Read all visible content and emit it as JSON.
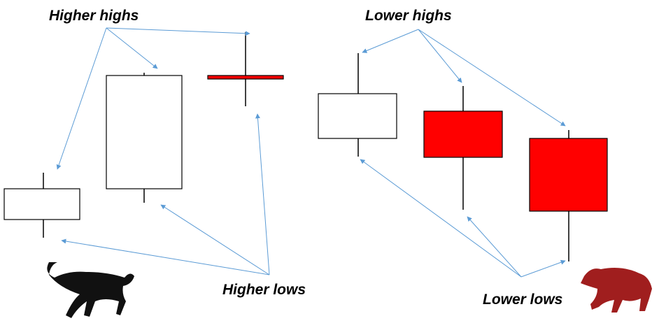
{
  "labels": {
    "higher_highs": "Higher highs",
    "lower_highs": "Lower highs",
    "higher_lows": "Higher lows",
    "lower_lows": "Lower lows"
  }
}
